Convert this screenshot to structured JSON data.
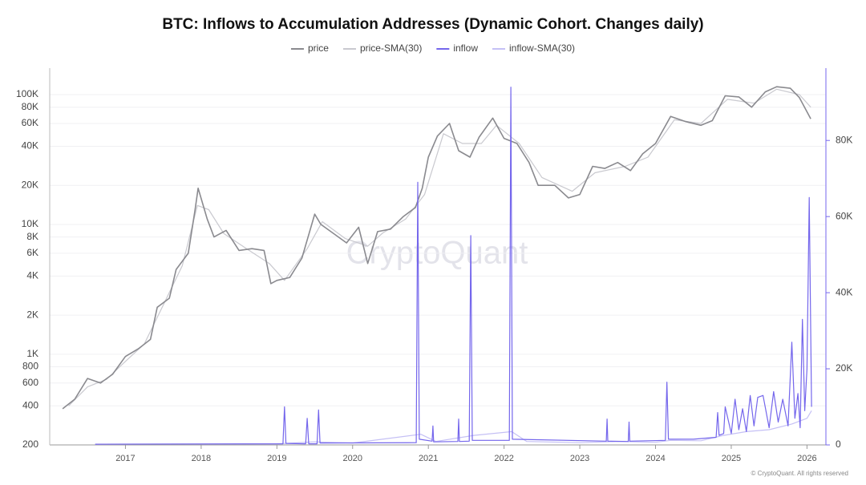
{
  "chart_data": {
    "type": "line",
    "title": "BTC: Inflows to Accumulation Addresses (Dynamic Cohort. Changes daily)",
    "watermark": "CryptoQuant",
    "footer": "© CryptoQuant. All rights reserved",
    "legend": "top",
    "ylog": true,
    "grid": true,
    "xlim": [
      2016,
      2026.25
    ],
    "xticks": [
      2017,
      2018,
      2019,
      2020,
      2021,
      2022,
      2023,
      2024,
      2025,
      2026
    ],
    "ylim": [
      200,
      160000
    ],
    "yticks": [
      200,
      400,
      600,
      800,
      {
        "value": 1000,
        "label": "1K"
      },
      {
        "value": 2000,
        "label": "2K"
      },
      {
        "value": 4000,
        "label": "4K"
      },
      {
        "value": 6000,
        "label": "6K"
      },
      {
        "value": 8000,
        "label": "8K"
      },
      {
        "value": 10000,
        "label": "10K"
      },
      {
        "value": 20000,
        "label": "20K"
      },
      {
        "value": 40000,
        "label": "40K"
      },
      {
        "value": 60000,
        "label": "60K"
      },
      {
        "value": 80000,
        "label": "80K"
      },
      {
        "value": 100000,
        "label": "100K"
      }
    ],
    "y2lim": [
      0,
      99000
    ],
    "y2ticks": [
      0,
      {
        "value": 20000,
        "label": "20K"
      },
      {
        "value": 40000,
        "label": "40K"
      },
      {
        "value": 60000,
        "label": "60K"
      },
      {
        "value": 80000,
        "label": "80K"
      }
    ],
    "series": [
      {
        "name": "price",
        "color": "#8a8a8f",
        "width": 1.6,
        "x": [
          2016.17,
          2016.33,
          2016.5,
          2016.67,
          2016.83,
          2017.0,
          2017.17,
          2017.33,
          2017.42,
          2017.58,
          2017.67,
          2017.83,
          2017.92,
          2017.96,
          2018.08,
          2018.17,
          2018.33,
          2018.5,
          2018.67,
          2018.83,
          2018.92,
          2019.0,
          2019.17,
          2019.33,
          2019.5,
          2019.58,
          2019.75,
          2019.92,
          2020.08,
          2020.2,
          2020.33,
          2020.5,
          2020.67,
          2020.83,
          2020.92,
          2021.0,
          2021.12,
          2021.28,
          2021.4,
          2021.55,
          2021.67,
          2021.85,
          2022.0,
          2022.17,
          2022.33,
          2022.45,
          2022.67,
          2022.85,
          2023.0,
          2023.17,
          2023.33,
          2023.5,
          2023.67,
          2023.83,
          2024.0,
          2024.2,
          2024.4,
          2024.6,
          2024.75,
          2024.92,
          2025.1,
          2025.27,
          2025.45,
          2025.6,
          2025.78,
          2025.9,
          2026.05
        ],
        "values": [
          380,
          450,
          650,
          600,
          700,
          960,
          1100,
          1300,
          2300,
          2700,
          4500,
          6000,
          13000,
          19000,
          11000,
          8000,
          9000,
          6300,
          6500,
          6300,
          3500,
          3700,
          3900,
          5500,
          12000,
          10000,
          8500,
          7200,
          9500,
          5000,
          8800,
          9200,
          11500,
          13500,
          19000,
          33000,
          48000,
          60000,
          37000,
          33000,
          47000,
          66000,
          46000,
          42000,
          30000,
          20000,
          20000,
          16000,
          17000,
          28000,
          27000,
          30000,
          26000,
          35000,
          42000,
          68000,
          62000,
          58000,
          63000,
          98000,
          96000,
          80000,
          105000,
          115000,
          112000,
          95000,
          65000
        ]
      },
      {
        "name": "price-SMA(30)",
        "color": "#c9c9cf",
        "width": 1.2,
        "x": [
          2016.25,
          2016.5,
          2016.75,
          2017.0,
          2017.25,
          2017.5,
          2017.75,
          2017.95,
          2018.1,
          2018.3,
          2018.6,
          2018.9,
          2019.1,
          2019.4,
          2019.6,
          2019.9,
          2020.2,
          2020.4,
          2020.7,
          2020.95,
          2021.2,
          2021.45,
          2021.7,
          2021.9,
          2022.2,
          2022.5,
          2022.9,
          2023.2,
          2023.6,
          2023.9,
          2024.25,
          2024.6,
          2024.95,
          2025.3,
          2025.6,
          2025.9,
          2026.05
        ],
        "values": [
          400,
          560,
          640,
          880,
          1200,
          2400,
          4800,
          14000,
          13000,
          8500,
          6500,
          5000,
          3700,
          6500,
          10500,
          7800,
          6800,
          8600,
          11000,
          17000,
          50000,
          42000,
          42000,
          58000,
          42000,
          23000,
          18000,
          25000,
          28000,
          33000,
          64000,
          60000,
          92000,
          86000,
          110000,
          100000,
          80000
        ]
      },
      {
        "name": "inflow",
        "color": "#7466ec",
        "width": 1.2,
        "axis": "y2",
        "x": [
          2016.6,
          2019.08,
          2019.1,
          2019.12,
          2019.38,
          2019.4,
          2019.42,
          2019.53,
          2019.55,
          2019.57,
          2020.84,
          2020.86,
          2020.88,
          2021.05,
          2021.06,
          2021.07,
          2021.39,
          2021.4,
          2021.41,
          2021.54,
          2021.56,
          2021.58,
          2022.07,
          2022.09,
          2022.11,
          2023.35,
          2023.36,
          2023.37,
          2023.64,
          2023.65,
          2023.66,
          2024.13,
          2024.15,
          2024.17,
          2024.5,
          2024.8,
          2024.82,
          2024.84,
          2024.9,
          2024.92,
          2025.0,
          2025.05,
          2025.1,
          2025.15,
          2025.2,
          2025.25,
          2025.3,
          2025.35,
          2025.42,
          2025.5,
          2025.56,
          2025.62,
          2025.68,
          2025.75,
          2025.8,
          2025.84,
          2025.88,
          2025.91,
          2025.94,
          2025.97,
          2026.0,
          2026.03,
          2026.06
        ],
        "values": [
          200,
          300,
          10000,
          400,
          300,
          7000,
          300,
          300,
          9200,
          500,
          600,
          69000,
          1500,
          1000,
          5000,
          800,
          900,
          6800,
          900,
          1000,
          55000,
          1200,
          1200,
          94000,
          1500,
          1000,
          6800,
          1000,
          900,
          6000,
          1000,
          1200,
          16500,
          1500,
          1500,
          2000,
          8500,
          2500,
          3000,
          10000,
          3000,
          12000,
          4000,
          9500,
          3500,
          13000,
          5000,
          12500,
          13000,
          4500,
          14000,
          6000,
          12000,
          5000,
          27000,
          7000,
          13500,
          4500,
          33000,
          9000,
          20000,
          65000,
          10000
        ]
      },
      {
        "name": "inflow-SMA(30)",
        "color": "#c5c0f5",
        "width": 1.2,
        "axis": "y2",
        "x": [
          2016.6,
          2019.0,
          2019.5,
          2020.0,
          2020.9,
          2021.1,
          2021.6,
          2022.1,
          2022.3,
          2023.0,
          2023.5,
          2024.0,
          2024.2,
          2024.6,
          2024.9,
          2025.2,
          2025.5,
          2025.8,
          2026.0,
          2026.06
        ],
        "values": [
          200,
          300,
          800,
          500,
          2800,
          900,
          2500,
          3500,
          900,
          600,
          900,
          700,
          1200,
          1100,
          2500,
          3500,
          4000,
          5500,
          7000,
          9000
        ]
      }
    ]
  }
}
